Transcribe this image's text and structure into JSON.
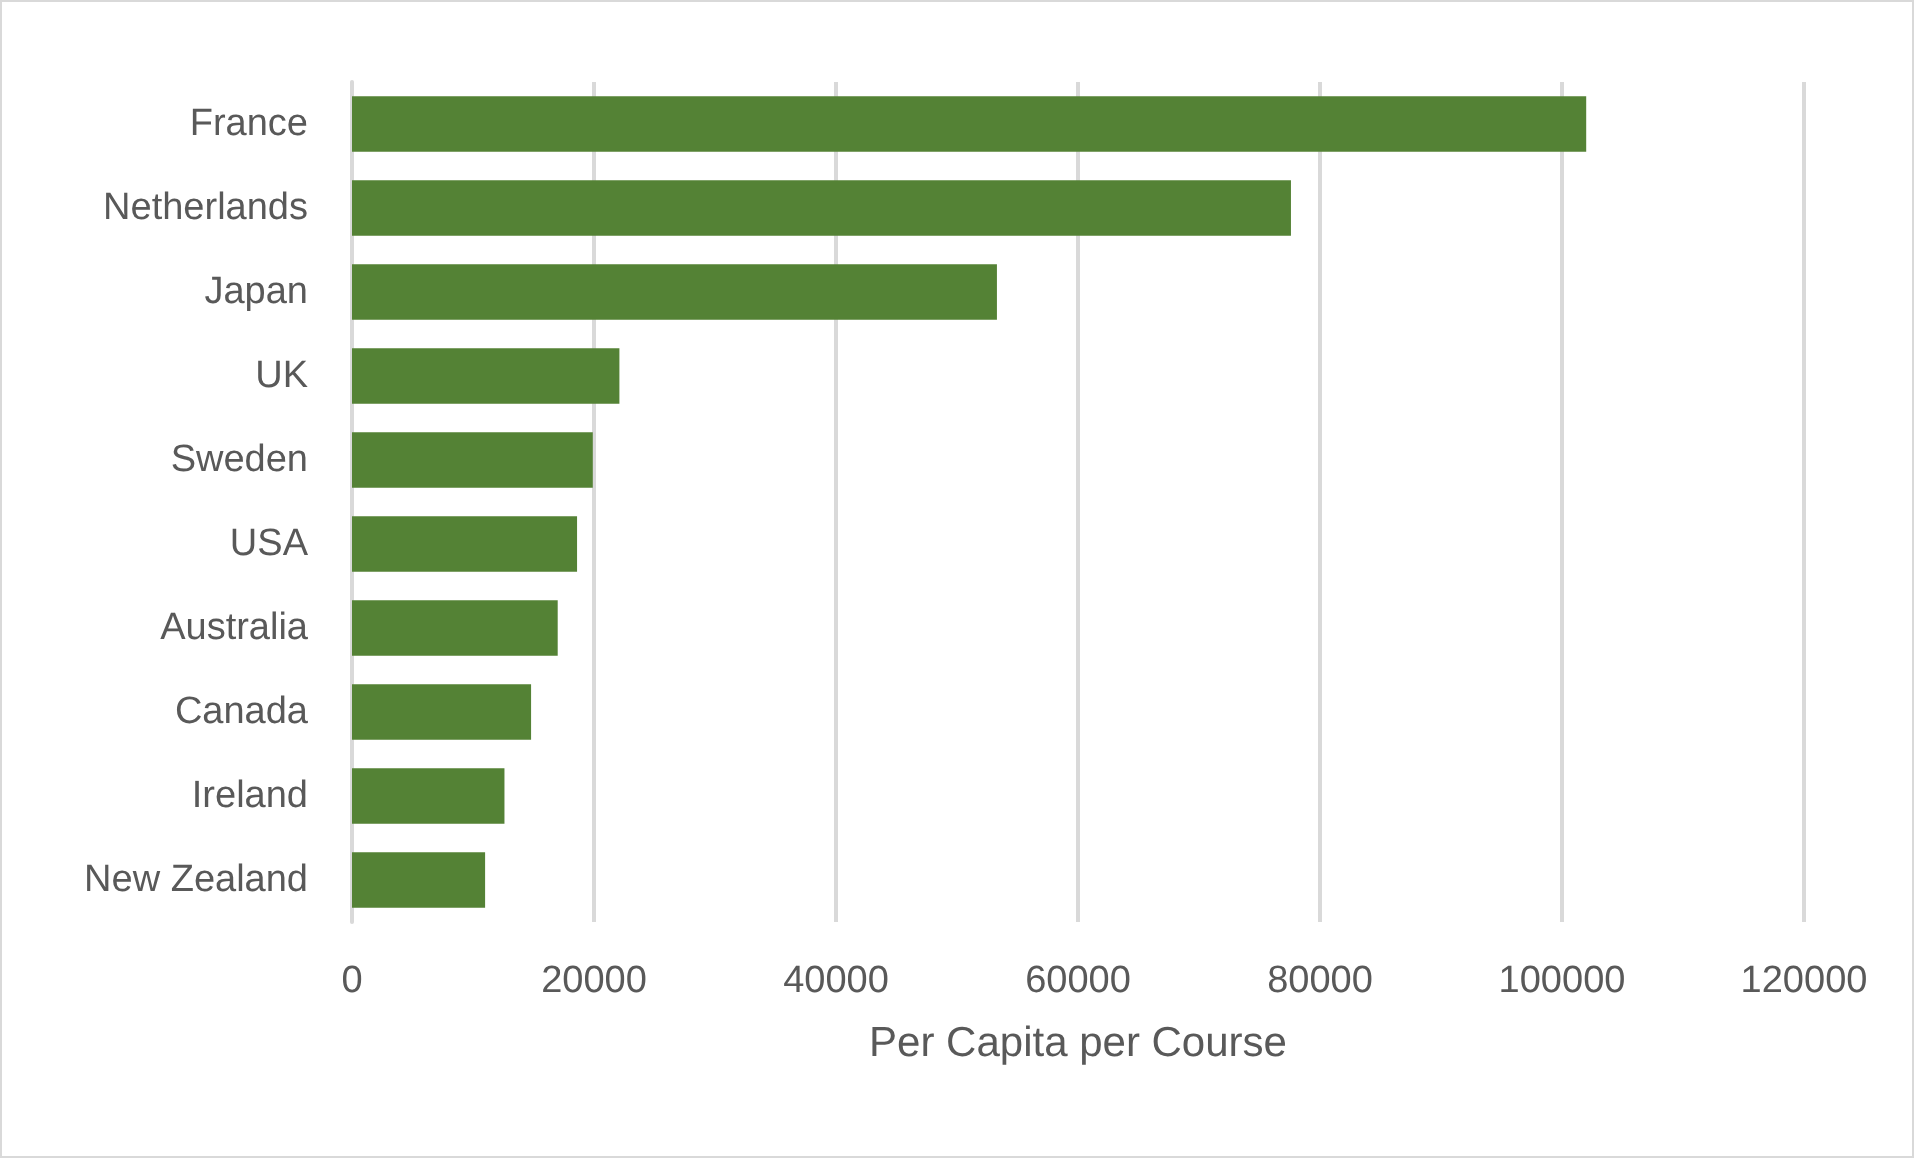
{
  "chart_data": {
    "type": "bar",
    "orientation": "horizontal",
    "xlabel": "Per Capita per Course",
    "categories": [
      "France",
      "Netherlands",
      "Japan",
      "UK",
      "Sweden",
      "USA",
      "Australia",
      "Canada",
      "Ireland",
      "New Zealand"
    ],
    "values": [
      102000,
      77600,
      53300,
      22100,
      19900,
      18600,
      17000,
      14800,
      12600,
      11000
    ],
    "color": "#548235",
    "xlim": [
      0,
      120000
    ],
    "xticks": [
      0,
      20000,
      40000,
      60000,
      80000,
      100000,
      120000
    ],
    "grid": "x"
  }
}
